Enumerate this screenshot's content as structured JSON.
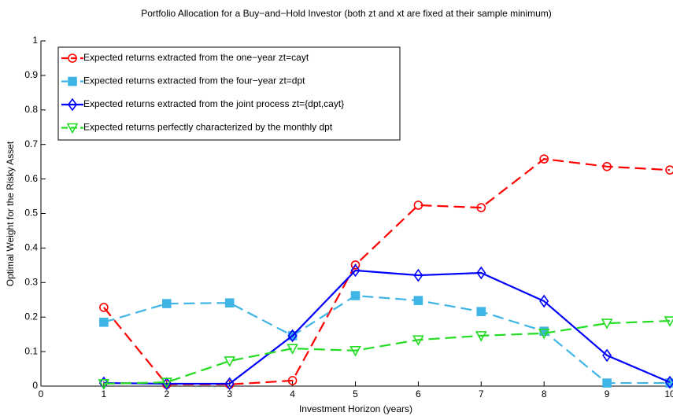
{
  "chart_data": {
    "type": "line",
    "title": "Portfolio Allocation for a Buy−and−Hold Investor (both zt and xt are fixed at their sample minimum)",
    "x_label": "Investment Horizon (years)",
    "y_label": "Optimal Weight for the Risky Asset",
    "x": [
      1,
      2,
      3,
      4,
      5,
      6,
      7,
      8,
      9,
      10
    ],
    "xlim": [
      0,
      10
    ],
    "xticks": [
      0,
      1,
      2,
      3,
      4,
      5,
      6,
      7,
      8,
      9,
      10
    ],
    "ylim": [
      0,
      1
    ],
    "yticks": [
      0,
      0.1,
      0.2,
      0.3,
      0.4,
      0.5,
      0.6,
      0.7,
      0.8,
      0.9,
      1
    ],
    "legend": "upper left",
    "series": [
      {
        "name": "Expected returns extracted from the one−year zt=cayt",
        "color": "#ff0000",
        "marker": "circle",
        "dashed": true,
        "values": [
          0.228,
          0.005,
          0.005,
          0.016,
          0.351,
          0.524,
          0.517,
          0.658,
          0.636,
          0.626
        ]
      },
      {
        "name": "Expected returns extracted from the four−year zt=dpt",
        "color": "#3fb5e6",
        "marker": "square",
        "dashed": true,
        "values": [
          0.185,
          0.239,
          0.241,
          0.146,
          0.262,
          0.248,
          0.216,
          0.159,
          0.009,
          0.009
        ]
      },
      {
        "name": "Expected returns extracted from the joint process zt={dpt,cayt}",
        "color": "#0000ff",
        "marker": "diamond",
        "dashed": false,
        "values": [
          0.009,
          0.007,
          0.007,
          0.146,
          0.335,
          0.321,
          0.328,
          0.246,
          0.089,
          0.011
        ]
      },
      {
        "name": "Expected returns perfectly characterized by the monthly dpt",
        "color": "#22dd22",
        "marker": "triangle-down",
        "dashed": true,
        "values": [
          0.007,
          0.011,
          0.073,
          0.109,
          0.103,
          0.134,
          0.146,
          0.153,
          0.182,
          0.189
        ]
      }
    ]
  }
}
